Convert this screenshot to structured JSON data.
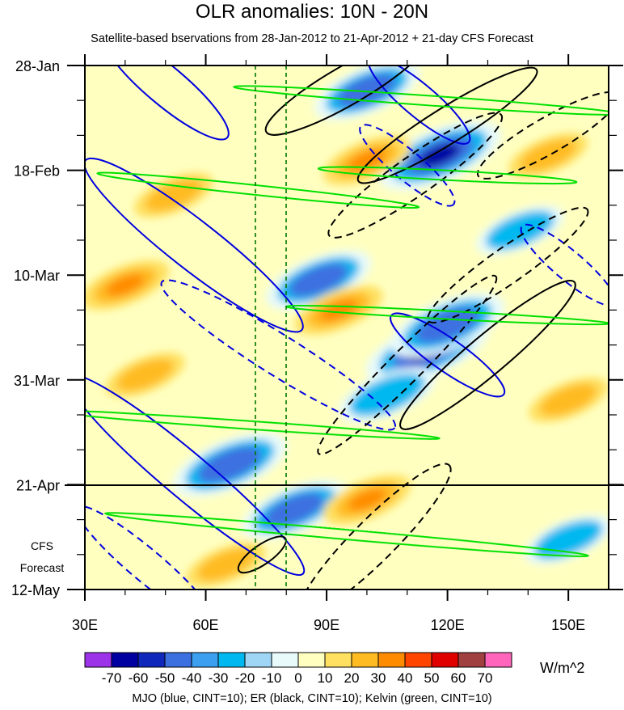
{
  "chart_data": {
    "type": "heatmap",
    "title": "OLR anomalies: 10N - 20N",
    "subtitle": "Satellite-based bservations from 28-Jan-2012 to 21-Apr-2012 + 21-day CFS Forecast",
    "x_ticks": [
      "30E",
      "60E",
      "90E",
      "120E",
      "150E"
    ],
    "x_tick_values": [
      30,
      60,
      90,
      120,
      150
    ],
    "xlim": [
      30,
      160
    ],
    "y_ticks": [
      "28-Jan",
      "18-Feb",
      "10-Mar",
      "31-Mar",
      "21-Apr",
      "12-May"
    ],
    "y_tick_values": [
      0,
      21,
      42,
      63,
      84,
      105
    ],
    "y_axis_note": "days since 28-Jan-2012, time increases downward",
    "forecast_start": "21-Apr",
    "forecast_label_line1": "CFS",
    "forecast_label_line2": "Forecast",
    "vertical_reference_lines_lon": [
      72,
      80
    ],
    "colorbar": {
      "unit": "W/m^2",
      "labels": [
        "-70",
        "-60",
        "-50",
        "-40",
        "-30",
        "-20",
        "-10",
        "0",
        "10",
        "20",
        "30",
        "40",
        "50",
        "60",
        "70"
      ],
      "colors": [
        "#9d33e8",
        "#0000a0",
        "#0f28bb",
        "#3c6fe0",
        "#3c9ff0",
        "#00b8f0",
        "#a0d6f5",
        "#e8fafa",
        "#ffffc0",
        "#ffe060",
        "#ffbb22",
        "#ff8c00",
        "#ff4500",
        "#e00000",
        "#a04040",
        "#ff66bb"
      ]
    },
    "anomaly_features": [
      {
        "sign": "negative",
        "value": -70,
        "lon": 118,
        "day": 18
      },
      {
        "sign": "negative",
        "value": -50,
        "lon": 100,
        "day": 5
      },
      {
        "sign": "negative",
        "value": -70,
        "lon": 115,
        "day": 57
      },
      {
        "sign": "negative",
        "value": -60,
        "lon": 120,
        "day": 52
      },
      {
        "sign": "negative",
        "value": -50,
        "lon": 88,
        "day": 43
      },
      {
        "sign": "negative",
        "value": -60,
        "lon": 66,
        "day": 80
      },
      {
        "sign": "negative",
        "value": -50,
        "lon": 82,
        "day": 89
      },
      {
        "sign": "negative",
        "value": -40,
        "lon": 105,
        "day": 66
      },
      {
        "sign": "negative",
        "value": -30,
        "lon": 138,
        "day": 33
      },
      {
        "sign": "negative",
        "value": -30,
        "lon": 150,
        "day": 95
      },
      {
        "sign": "positive",
        "value": 30,
        "lon": 40,
        "day": 44
      },
      {
        "sign": "positive",
        "value": 20,
        "lon": 52,
        "day": 26
      },
      {
        "sign": "positive",
        "value": 30,
        "lon": 100,
        "day": 19
      },
      {
        "sign": "positive",
        "value": 30,
        "lon": 93,
        "day": 49
      },
      {
        "sign": "positive",
        "value": 30,
        "lon": 100,
        "day": 87
      },
      {
        "sign": "positive",
        "value": 20,
        "lon": 65,
        "day": 100
      },
      {
        "sign": "positive",
        "value": 20,
        "lon": 150,
        "day": 67
      },
      {
        "sign": "positive",
        "value": 20,
        "lon": 145,
        "day": 18
      },
      {
        "sign": "positive",
        "value": 20,
        "lon": 45,
        "day": 62
      }
    ],
    "filtered_anomalies": {
      "MJO": {
        "color": "#0000e0",
        "cint": 10
      },
      "ER": {
        "color": "#000000",
        "cint": 10
      },
      "Kelvin": {
        "color": "#00e000",
        "cint": 10
      }
    },
    "footnote": "MJO (blue, CINT=10); ER (black, CINT=10); Kelvin (green, CINT=10)"
  }
}
